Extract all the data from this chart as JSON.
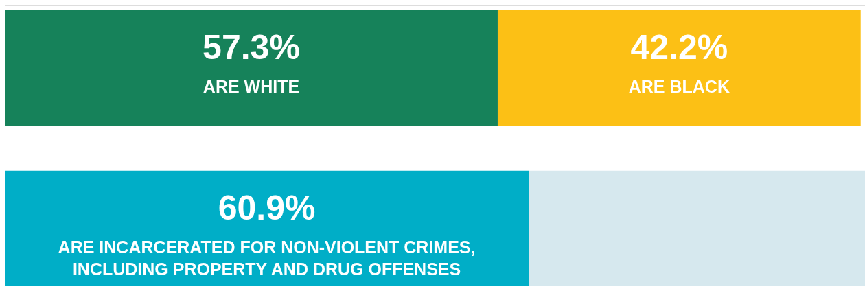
{
  "chart_data": {
    "type": "bar",
    "orientation": "horizontal",
    "stacked": true,
    "categories": [
      null,
      null
    ],
    "series": [
      {
        "colors": [
          "#16825a",
          "#00aec7"
        ],
        "values": [
          57.3,
          60.9
        ],
        "value_labels": [
          "57.3%",
          "60.9%"
        ]
      },
      {
        "colors": [
          "#fcc015",
          "#d6e8ee"
        ],
        "values": [
          42.2,
          39.1
        ],
        "value_labels": [
          "42.2%",
          null
        ]
      }
    ],
    "annotations": [
      "ARE WHITE",
      "ARE BLACK",
      "ARE INCARCERATED FOR NON-VIOLENT CRIMES,\nINCLUDING PROPERTY AND DRUG OFFENSES"
    ],
    "xlim": [
      0,
      100
    ]
  }
}
